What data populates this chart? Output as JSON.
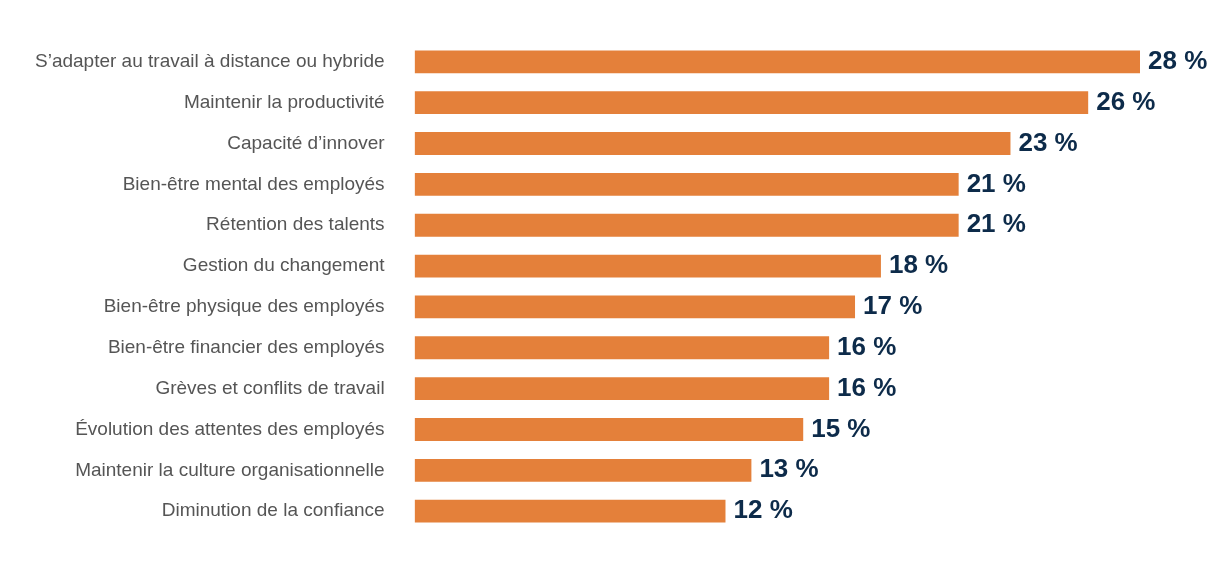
{
  "chart_data": {
    "type": "bar",
    "orientation": "horizontal",
    "categories": [
      "S’adapter au travail à distance ou hybride",
      "Maintenir la productivité",
      "Capacité d’innover",
      "Bien-être mental des employés",
      "Rétention des talents",
      "Gestion du changement",
      "Bien-être physique des employés",
      "Bien-être financier des employés",
      "Grèves et conflits de travail",
      "Évolution des attentes des employés",
      "Maintenir la culture organisationnelle",
      "Diminution de la confiance"
    ],
    "values": [
      28,
      26,
      23,
      21,
      21,
      18,
      17,
      16,
      16,
      15,
      13,
      12
    ],
    "value_labels": [
      "28 %",
      "26 %",
      "23 %",
      "21 %",
      "21 %",
      "18 %",
      "17 %",
      "16 %",
      "16 %",
      "15 %",
      "13 %",
      "12 %"
    ],
    "color": "#e4803a",
    "grid": false,
    "legend": false,
    "tick_labels": "y"
  }
}
